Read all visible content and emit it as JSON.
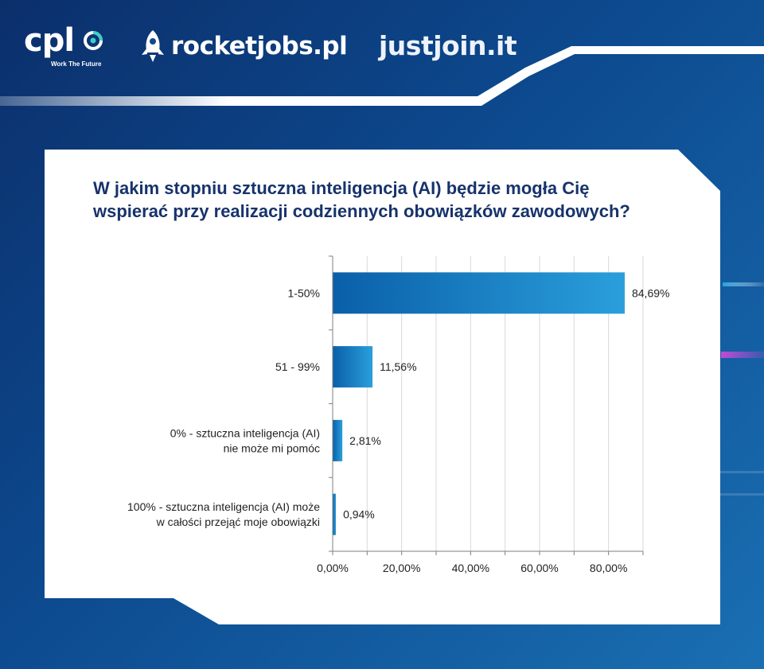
{
  "header": {
    "cpl_name": "cpl",
    "cpl_tagline": "Work The Future",
    "rocketjobs_name": "rocketjobs.pl",
    "justjoin_name": "justjoin.it"
  },
  "colors": {
    "background": "#0d4a8f",
    "title": "#17336b",
    "bar_start": "#0a5fa8",
    "bar_end": "#2a9fdc",
    "accent_magenta": "#c04bd8"
  },
  "chart_data": {
    "type": "bar",
    "orientation": "horizontal",
    "title_lines": [
      "W jakim stopniu sztuczna inteligencja (AI) będzie mogła Cię",
      "wspierać przy realizacji codziennych obowiązków zawodowych?"
    ],
    "categories": [
      [
        "1-50%"
      ],
      [
        "51 - 99%"
      ],
      [
        "0% - sztuczna inteligencja (AI)",
        "nie może mi pomóc"
      ],
      [
        "100% - sztuczna inteligencja (AI) może",
        "w całości przejąć moje obowiązki"
      ]
    ],
    "values": [
      84.69,
      11.56,
      2.81,
      0.94
    ],
    "value_labels": [
      "84,69%",
      "11,56%",
      "2,81%",
      "0,94%"
    ],
    "xlim": [
      0,
      90
    ],
    "x_ticks": [
      0,
      20,
      40,
      60,
      80
    ],
    "x_tick_labels": [
      "0,00%",
      "20,00%",
      "40,00%",
      "60,00%",
      "80,00%"
    ],
    "grid": true,
    "legend": "none"
  }
}
